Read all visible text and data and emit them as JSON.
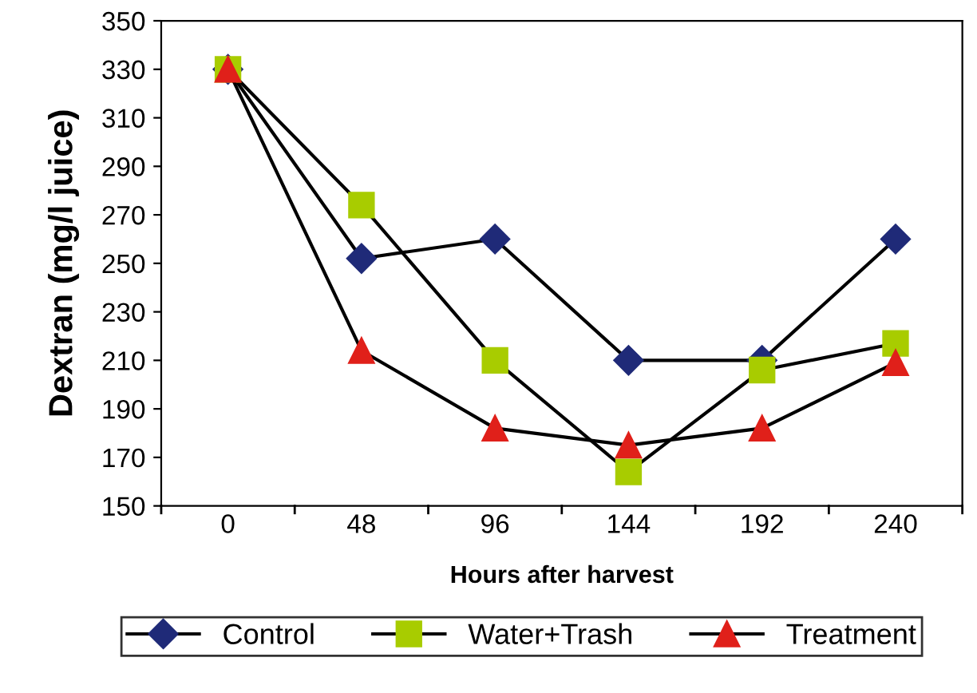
{
  "chart_data": {
    "type": "line",
    "xlabel": "Hours after harvest",
    "ylabel": "Dextran (mg/l juice)",
    "categories": [
      "0",
      "48",
      "96",
      "144",
      "192",
      "240"
    ],
    "series": [
      {
        "name": "Control",
        "color": "#1f2a78",
        "marker": "diamond",
        "values": [
          330,
          252,
          260,
          210,
          210,
          260
        ]
      },
      {
        "name": "Water+Trash",
        "color": "#a8cc00",
        "marker": "square",
        "values": [
          330,
          274,
          210,
          164,
          206,
          217
        ]
      },
      {
        "name": "Treatment",
        "color": "#e0201a",
        "marker": "triangle",
        "values": [
          330,
          214,
          182,
          175,
          182,
          209
        ]
      }
    ],
    "ylim": [
      150,
      350
    ],
    "yticks": [
      150,
      170,
      190,
      210,
      230,
      250,
      270,
      290,
      310,
      330,
      350
    ],
    "grid": false,
    "legend": "bottom",
    "line_style": "solid"
  }
}
